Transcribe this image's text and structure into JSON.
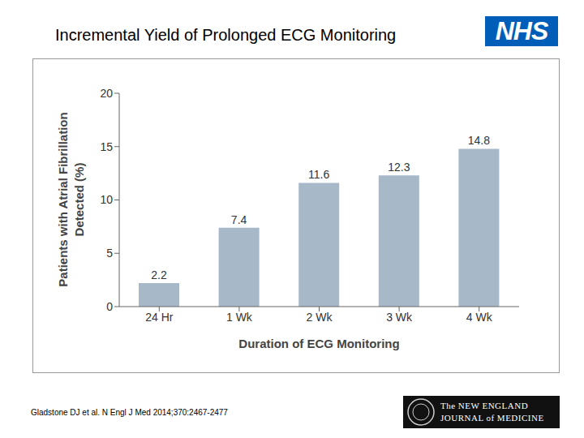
{
  "chart_data": {
    "type": "bar",
    "title": "Incremental Yield of Prolonged ECG Monitoring",
    "x_label": "Duration of ECG Monitoring",
    "y_label": "Patients with Atrial Fibrillation Detected (%)",
    "categories": [
      "24 Hr",
      "1 Wk",
      "2 Wk",
      "3 Wk",
      "4 Wk"
    ],
    "values": [
      2.2,
      7.4,
      11.6,
      12.3,
      14.8
    ],
    "color": "#a7b9c9",
    "ylim": [
      0,
      20
    ],
    "yticks": [
      0,
      5,
      10,
      15,
      20
    ],
    "grid": false,
    "data_labels": true
  },
  "page": {
    "logo": "NHS",
    "citation": "Gladstone DJ et al. N Engl J Med 2014;370:2467-2477",
    "journal": [
      "The NEW ENGLAND",
      "JOURNAL of MEDICINE"
    ]
  }
}
